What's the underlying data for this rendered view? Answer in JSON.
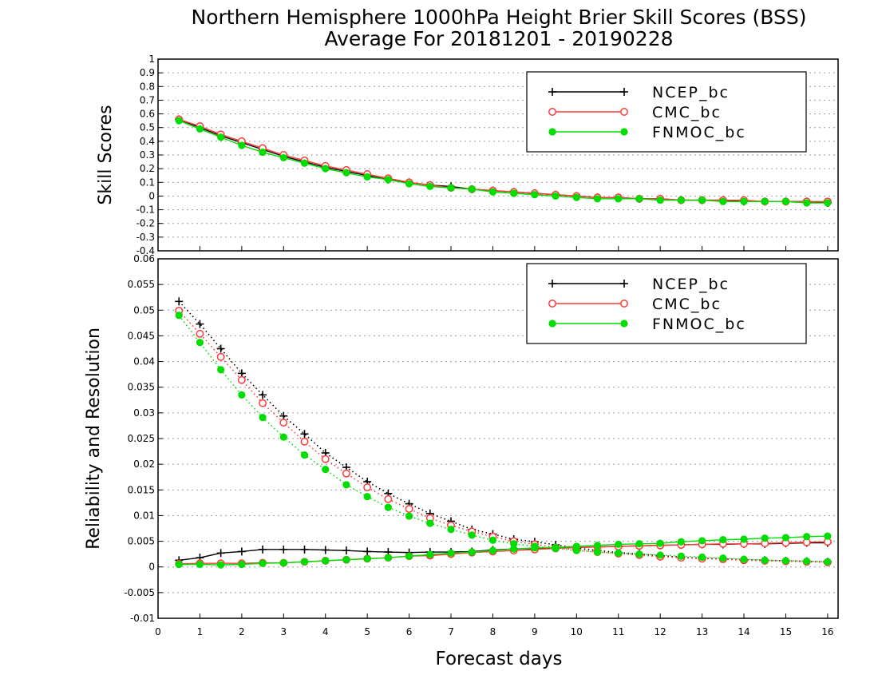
{
  "title_line1": "Northern Hemisphere 1000hPa Height Brier Skill Scores (BSS)",
  "title_line2": "Average For 20181201 - 20190228",
  "colors": {
    "NCEP_bc": "#000000",
    "CMC_bc": "#ff3a3a",
    "FNMOC_bc": "#00dd00"
  },
  "chart_data": [
    {
      "type": "line",
      "ylabel": "Skill Scores",
      "ylim": [
        -0.4,
        1
      ],
      "yticks": [
        "-0.4",
        "-0.3",
        "-0.2",
        "-0.1",
        "0",
        "0.1",
        "0.2",
        "0.3",
        "0.4",
        "0.5",
        "0.6",
        "0.7",
        "0.8",
        "0.9",
        "1"
      ],
      "xlim": [
        0,
        16.25
      ],
      "grid": "horizontal dotted",
      "legend_position": "top-right",
      "x": [
        0.5,
        1,
        1.5,
        2,
        2.5,
        3,
        3.5,
        4,
        4.5,
        5,
        5.5,
        6,
        6.5,
        7,
        7.5,
        8,
        8.5,
        9,
        9.5,
        10,
        10.5,
        11,
        11.5,
        12,
        12.5,
        13,
        13.5,
        14,
        14.5,
        15,
        15.5,
        16
      ],
      "series": [
        {
          "name": "NCEP_bc",
          "marker": "plus",
          "line": "solid",
          "values": [
            0.56,
            0.5,
            0.44,
            0.39,
            0.34,
            0.29,
            0.25,
            0.21,
            0.18,
            0.15,
            0.12,
            0.1,
            0.08,
            0.07,
            0.05,
            0.04,
            0.03,
            0.02,
            0.01,
            0.0,
            -0.01,
            -0.01,
            -0.02,
            -0.02,
            -0.03,
            -0.03,
            -0.03,
            -0.04,
            -0.04,
            -0.04,
            -0.04,
            -0.05
          ]
        },
        {
          "name": "CMC_bc",
          "marker": "open-circle",
          "line": "solid",
          "values": [
            0.56,
            0.51,
            0.45,
            0.4,
            0.35,
            0.3,
            0.26,
            0.22,
            0.19,
            0.16,
            0.13,
            0.1,
            0.08,
            0.06,
            0.05,
            0.04,
            0.03,
            0.02,
            0.01,
            0.0,
            -0.01,
            -0.01,
            -0.02,
            -0.02,
            -0.03,
            -0.03,
            -0.03,
            -0.03,
            -0.04,
            -0.04,
            -0.04,
            -0.04
          ]
        },
        {
          "name": "FNMOC_bc",
          "marker": "filled-circle",
          "line": "solid",
          "values": [
            0.55,
            0.49,
            0.43,
            0.37,
            0.32,
            0.28,
            0.24,
            0.2,
            0.17,
            0.14,
            0.12,
            0.09,
            0.07,
            0.06,
            0.05,
            0.03,
            0.02,
            0.01,
            0.0,
            -0.01,
            -0.02,
            -0.02,
            -0.02,
            -0.03,
            -0.03,
            -0.03,
            -0.04,
            -0.04,
            -0.04,
            -0.04,
            -0.05,
            -0.05
          ]
        }
      ]
    },
    {
      "type": "line",
      "ylabel": "Reliability and Resolution",
      "xlabel": "Forecast days",
      "ylim": [
        -0.01,
        0.06
      ],
      "yticks": [
        "-0.01",
        "-0.005",
        "0",
        "0.005",
        "0.01",
        "0.015",
        "0.02",
        "0.025",
        "0.03",
        "0.035",
        "0.04",
        "0.045",
        "0.05",
        "0.055",
        "0.06"
      ],
      "xlim": [
        0,
        16.25
      ],
      "xticks": [
        "0",
        "1",
        "2",
        "3",
        "4",
        "5",
        "6",
        "7",
        "8",
        "9",
        "10",
        "11",
        "12",
        "13",
        "14",
        "15",
        "16"
      ],
      "grid": "horizontal dotted",
      "legend_position": "top-right",
      "x": [
        0.5,
        1,
        1.5,
        2,
        2.5,
        3,
        3.5,
        4,
        4.5,
        5,
        5.5,
        6,
        6.5,
        7,
        7.5,
        8,
        8.5,
        9,
        9.5,
        10,
        10.5,
        11,
        11.5,
        12,
        12.5,
        13,
        13.5,
        14,
        14.5,
        15,
        15.5,
        16
      ],
      "series": [
        {
          "name": "NCEP_bc",
          "measure": "reliability",
          "marker": "plus",
          "line": "solid",
          "values": [
            0.0013,
            0.0018,
            0.0027,
            0.003,
            0.0034,
            0.0034,
            0.0034,
            0.0033,
            0.0032,
            0.003,
            0.0029,
            0.0028,
            0.0029,
            0.0029,
            0.003,
            0.0033,
            0.0035,
            0.0036,
            0.0037,
            0.0038,
            0.0039,
            0.004,
            0.0041,
            0.0042,
            0.0043,
            0.0044,
            0.0044,
            0.0045,
            0.0045,
            0.0046,
            0.0047,
            0.0047
          ]
        },
        {
          "name": "NCEP_bc",
          "measure": "resolution",
          "marker": "plus",
          "line": "dotted",
          "values": [
            0.0517,
            0.0473,
            0.0425,
            0.0377,
            0.0335,
            0.0294,
            0.0259,
            0.0222,
            0.0194,
            0.0166,
            0.0143,
            0.0123,
            0.0104,
            0.0089,
            0.0073,
            0.0064,
            0.0054,
            0.0049,
            0.0043,
            0.0037,
            0.0032,
            0.0028,
            0.0025,
            0.0022,
            0.0019,
            0.0017,
            0.0016,
            0.0014,
            0.0013,
            0.0012,
            0.0011,
            0.001
          ]
        },
        {
          "name": "CMC_bc",
          "measure": "reliability",
          "marker": "open-circle",
          "line": "solid",
          "values": [
            0.0006,
            0.0007,
            0.0007,
            0.0007,
            0.0008,
            0.0008,
            0.001,
            0.0012,
            0.0014,
            0.0016,
            0.0018,
            0.0021,
            0.0022,
            0.0025,
            0.0028,
            0.003,
            0.0032,
            0.0034,
            0.0036,
            0.0038,
            0.0039,
            0.004,
            0.0041,
            0.0042,
            0.0043,
            0.0044,
            0.0045,
            0.0045,
            0.0046,
            0.0047,
            0.0048,
            0.0049
          ]
        },
        {
          "name": "CMC_bc",
          "measure": "resolution",
          "marker": "open-circle",
          "line": "dotted",
          "values": [
            0.0499,
            0.0454,
            0.0409,
            0.0364,
            0.0319,
            0.0281,
            0.0244,
            0.021,
            0.0182,
            0.0155,
            0.0132,
            0.0113,
            0.0095,
            0.0081,
            0.0069,
            0.0059,
            0.005,
            0.0044,
            0.0038,
            0.0033,
            0.0029,
            0.0026,
            0.0023,
            0.002,
            0.0018,
            0.0016,
            0.0015,
            0.0013,
            0.0012,
            0.0011,
            0.001,
            0.0009
          ]
        },
        {
          "name": "FNMOC_bc",
          "measure": "reliability",
          "marker": "filled-circle",
          "line": "solid",
          "values": [
            0.0005,
            0.0005,
            0.0004,
            0.0005,
            0.0007,
            0.0008,
            0.001,
            0.0012,
            0.0014,
            0.0016,
            0.0018,
            0.0021,
            0.0024,
            0.0027,
            0.0029,
            0.0032,
            0.0035,
            0.0037,
            0.0038,
            0.004,
            0.0042,
            0.0044,
            0.0045,
            0.0046,
            0.0049,
            0.0051,
            0.0053,
            0.0054,
            0.0056,
            0.0057,
            0.0059,
            0.006
          ]
        },
        {
          "name": "FNMOC_bc",
          "measure": "resolution",
          "marker": "filled-circle",
          "line": "dotted",
          "values": [
            0.049,
            0.0437,
            0.0384,
            0.0335,
            0.0291,
            0.0253,
            0.0218,
            0.019,
            0.016,
            0.0137,
            0.0116,
            0.0099,
            0.0085,
            0.0073,
            0.0062,
            0.0052,
            0.0045,
            0.004,
            0.0036,
            0.0032,
            0.0029,
            0.0027,
            0.0025,
            0.0023,
            0.0021,
            0.0019,
            0.0017,
            0.0015,
            0.0013,
            0.0012,
            0.0011,
            0.001
          ]
        }
      ]
    }
  ]
}
